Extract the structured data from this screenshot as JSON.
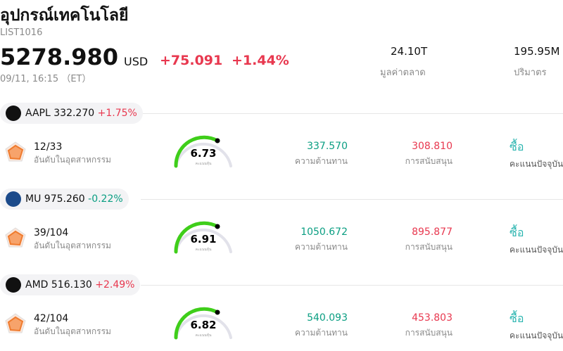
{
  "header": {
    "title": "อุปกรณ์เทคโนโลยี",
    "code": "LIST1016",
    "price": "5278.980",
    "currency": "USD",
    "change": "+75.091",
    "change_pct": "+1.44%",
    "time": "09/11, 16:15 （ET）",
    "stats": [
      {
        "value": "24.10T",
        "label": "มูลค่าตลาด"
      },
      {
        "value": "195.95M",
        "label": "ปริมาตร"
      }
    ]
  },
  "stocks": [
    {
      "ticker": "AAPL",
      "price": "332.270",
      "change": "+1.75%",
      "rank": "12/33",
      "rank_label": "อันดับในอุตสาหกรรม",
      "score": 6.73,
      "score_label": "คะแนนหุ้น",
      "resistance": "337.570",
      "resistance_label": "ความต้านทาน",
      "support": "308.810",
      "support_label": "การสนับสนุน",
      "rating": "ซื้อ",
      "rating_label": "คะแนนปัจจุบัน"
    },
    {
      "ticker": "MU",
      "price": "975.260",
      "change": "-0.22%",
      "rank": "39/104",
      "rank_label": "อันดับในอุตสาหกรรม",
      "score": 6.91,
      "score_label": "คะแนนหุ้น",
      "resistance": "1050.672",
      "resistance_label": "ความต้านทาน",
      "support": "895.877",
      "support_label": "การสนับสนุน",
      "rating": "ซื้อ",
      "rating_label": "คะแนนปัจจุบัน"
    },
    {
      "ticker": "AMD",
      "price": "516.130",
      "change": "+2.49%",
      "rank": "42/104",
      "rank_label": "อันดับในอุตสาหกรรม",
      "score": 6.82,
      "score_label": "คะแนนหุ้น",
      "resistance": "540.093",
      "resistance_label": "ความต้านทาน",
      "support": "453.803",
      "support_label": "การสนับสนุน",
      "rating": "ซื้อ",
      "rating_label": "คะแนนปัจจุบัน"
    }
  ]
}
